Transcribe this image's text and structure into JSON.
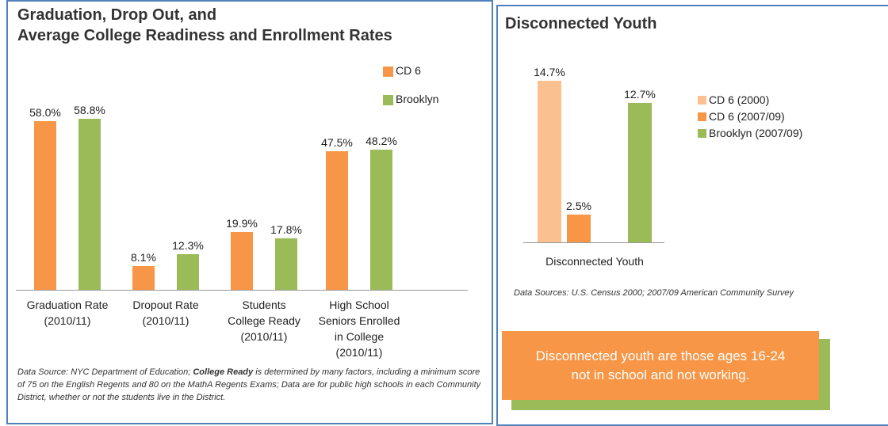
{
  "chart_data": [
    {
      "type": "bar",
      "title": "Graduation, Drop Out, and\nAverage College Readiness and Enrollment Rates",
      "categories": [
        "Graduation Rate\n(2010/11)",
        "Dropout Rate\n(2010/11)",
        "Students\nCollege Ready\n(2010/11)",
        "High School\nSeniors Enrolled\nin College\n(2010/11)"
      ],
      "series": [
        {
          "name": "CD 6",
          "color": "#f79646",
          "values": [
            58.0,
            8.1,
            19.9,
            47.5
          ],
          "value_labels": [
            "58.0%",
            "8.1%",
            "19.9%",
            "47.5%"
          ]
        },
        {
          "name": "Brooklyn",
          "color": "#9bbb59",
          "values": [
            58.8,
            12.3,
            17.8,
            48.2
          ],
          "value_labels": [
            "58.8%",
            "12.3%",
            "17.8%",
            "48.2%"
          ]
        }
      ],
      "ylim": [
        0,
        65
      ],
      "note": [
        "Data Source: NYC Department of Education; ",
        "College Ready",
        " is determined by many factors, including a minimum score of 75 on the English Regents and 80 on the MathA Regents Exams; Data are for public high schools in each Community District, whether or not the students live in the District."
      ]
    },
    {
      "type": "bar",
      "title": "Disconnected Youth",
      "categories": [
        "Disconnected Youth"
      ],
      "series": [
        {
          "name": "CD 6 (2000)",
          "color": "#fac090",
          "values": [
            14.7
          ],
          "value_labels": [
            "14.7%"
          ]
        },
        {
          "name": "CD 6 (2007/09)",
          "color": "#f79646",
          "values": [
            2.5
          ],
          "value_labels": [
            "2.5%"
          ]
        },
        {
          "name": "Brooklyn (2007/09)",
          "color": "#9bbb59",
          "values": [
            12.7
          ],
          "value_labels": [
            "12.7%"
          ]
        }
      ],
      "ylim": [
        0,
        16
      ],
      "note": "Data Sources: U.S. Census 2000; 2007/09 American Community Survey",
      "annotation": "Disconnected youth are those ages 16-24\nnot in school and not working."
    }
  ]
}
